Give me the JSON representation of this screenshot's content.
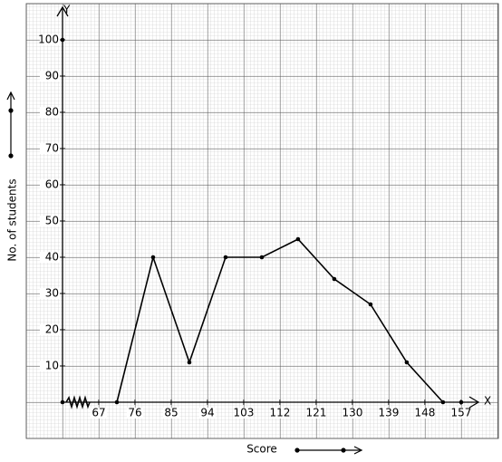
{
  "chart_data": {
    "type": "line",
    "x_label": "Score",
    "y_label": "No. of students",
    "x_axis_name": "X",
    "y_axis_name": "Y",
    "x": [
      71.5,
      80.5,
      89.5,
      98.5,
      107.5,
      116.5,
      125.5,
      134.5,
      143.5,
      152.5
    ],
    "series": [
      {
        "color": "#000000",
        "values": [
          0,
          40,
          11,
          40,
          40,
          45,
          34,
          27,
          11,
          0
        ]
      }
    ],
    "xlim": [
      58,
      161.3
    ],
    "ylim": [
      0,
      108.5
    ],
    "xticks": [
      67,
      76,
      85,
      94,
      103,
      112,
      121,
      130,
      139,
      148,
      157
    ],
    "yticks": [
      10,
      20,
      30,
      40,
      50,
      60,
      70,
      80,
      90,
      100
    ],
    "grid": true
  }
}
